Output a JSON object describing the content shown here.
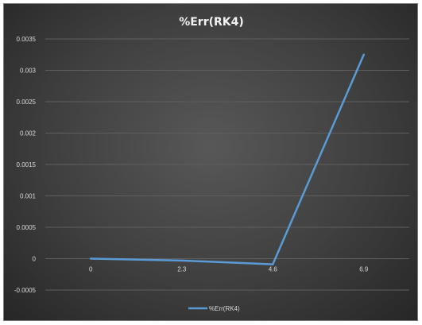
{
  "chart_data": {
    "type": "line",
    "title": "%Err(RK4)",
    "x": [
      "0",
      "2.3",
      "4.6",
      "6.9"
    ],
    "series": [
      {
        "name": "%Err(RK4)",
        "values": [
          0.0,
          -3e-05,
          -9e-05,
          0.00325
        ],
        "color": "#5b9bd5"
      }
    ],
    "y_ticks": [
      "-0.0005",
      "0",
      "0.0005",
      "0.001",
      "0.0015",
      "0.002",
      "0.0025",
      "0.003",
      "0.0035"
    ],
    "ylim": [
      -0.0005,
      0.0035
    ],
    "grid": true,
    "legend": "bottom",
    "background_color": "#404040",
    "grid_color": "#5e5e5e",
    "text_color": "#d9d9d9"
  }
}
